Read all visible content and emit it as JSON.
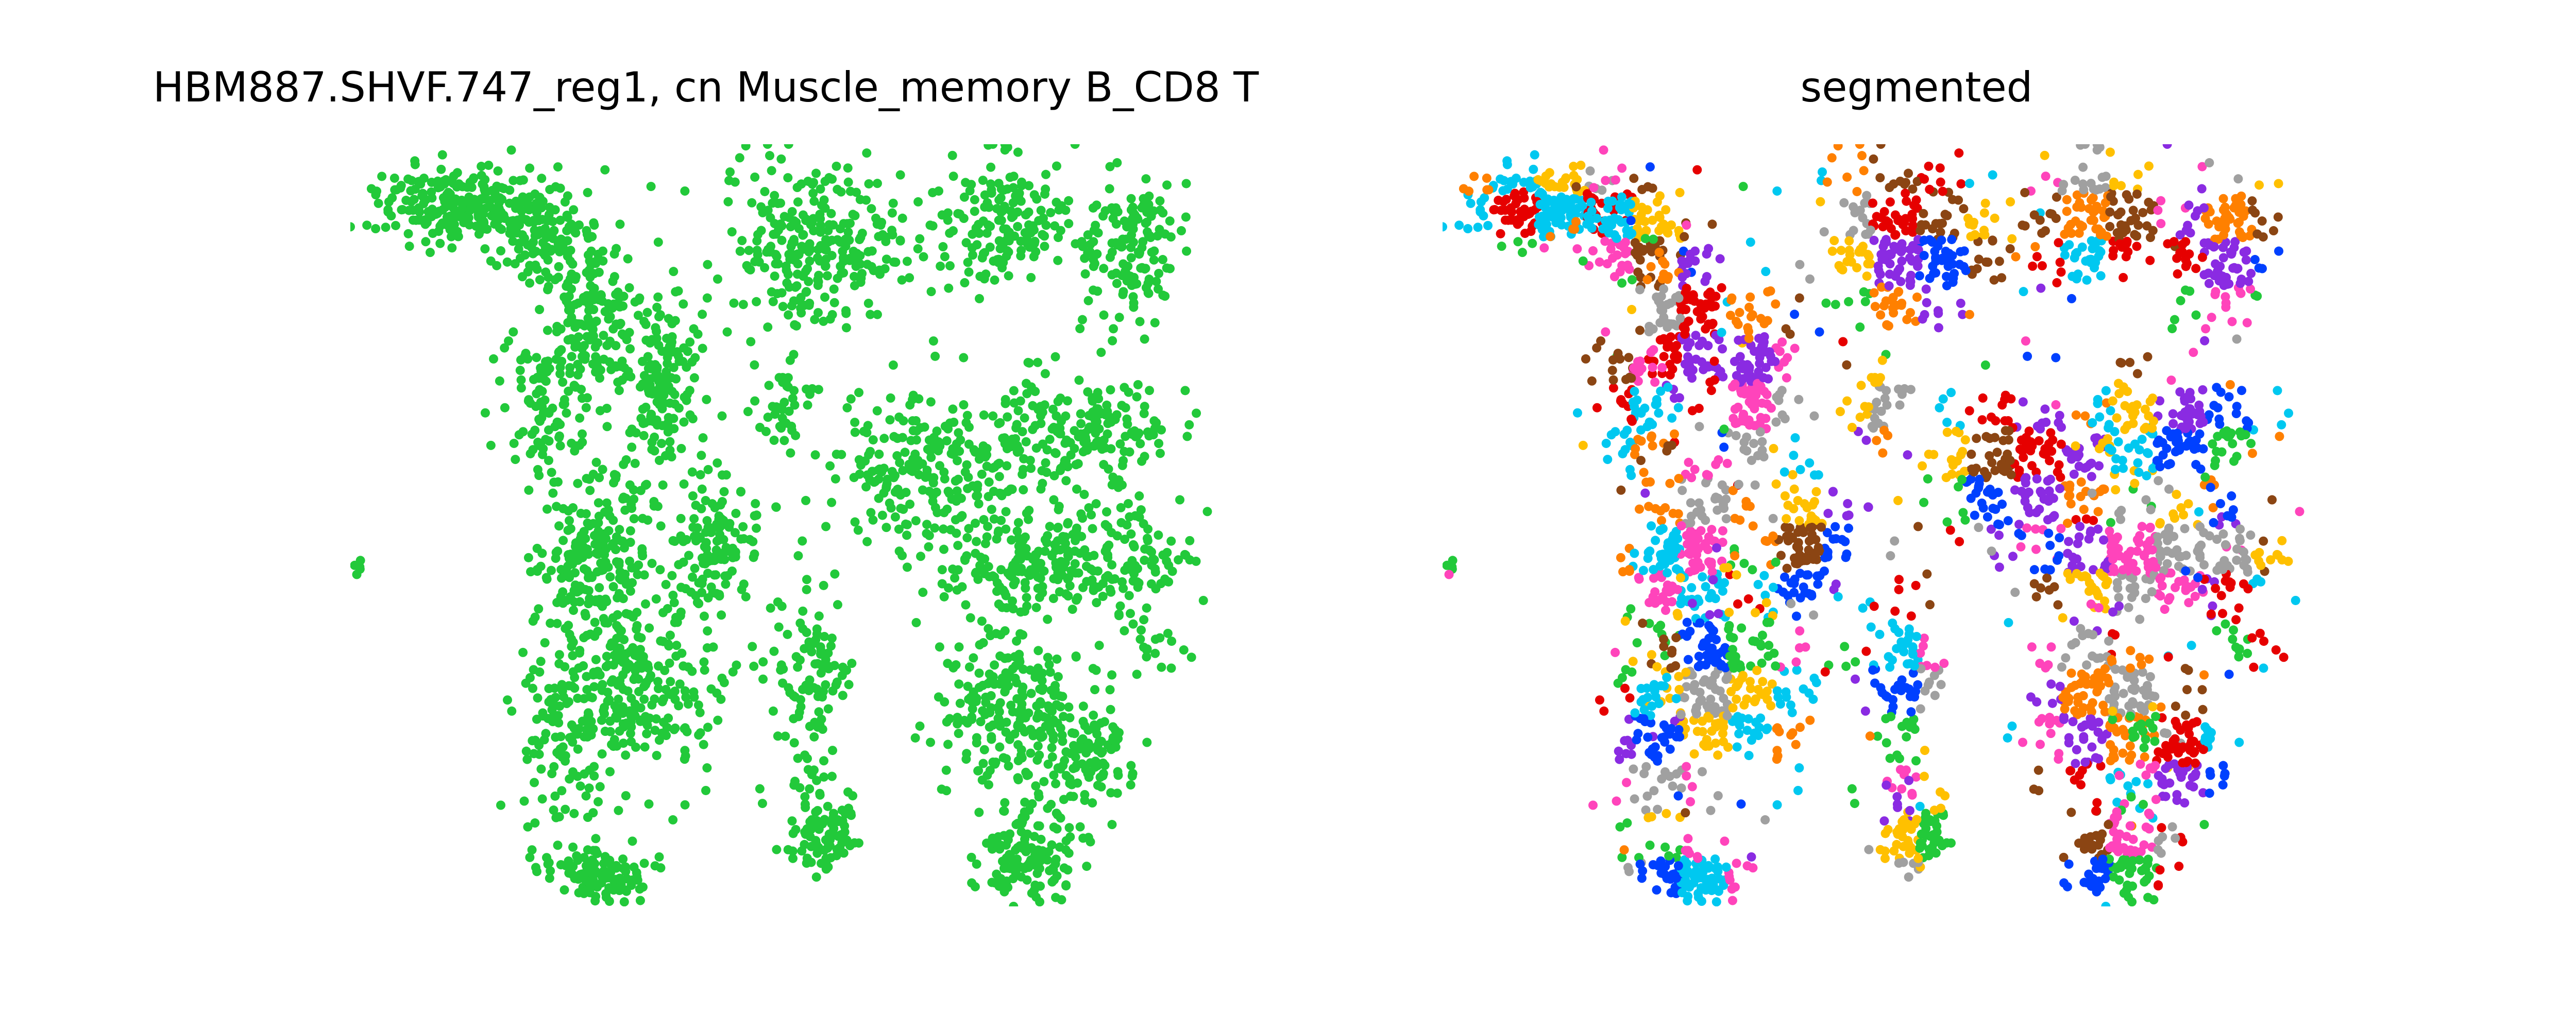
{
  "figure": {
    "panels": [
      {
        "title": "HBM887.SHVF.747_reg1, cn Muscle_memory B_CD8 T"
      },
      {
        "title": "segmented"
      }
    ]
  },
  "chart_data": [
    {
      "type": "scatter",
      "title": "HBM887.SHVF.747_reg1, cn Muscle_memory B_CD8 T",
      "xlabel": "",
      "ylabel": "",
      "axes_visible": false,
      "grid": false,
      "legend": "none",
      "xlim": [
        0,
        100
      ],
      "ylim": [
        0,
        88
      ],
      "point_color": "#22c93a",
      "description_of_points": "dense point cloud of cells in a single neighborhood color",
      "regions": [
        {
          "cx": 12,
          "cy": 7,
          "rx": 8,
          "ry": 4,
          "n": 220
        },
        {
          "cx": 22,
          "cy": 10,
          "rx": 6,
          "ry": 5,
          "n": 140
        },
        {
          "cx": 28,
          "cy": 20,
          "rx": 5,
          "ry": 8,
          "n": 160
        },
        {
          "cx": 36,
          "cy": 27,
          "rx": 4,
          "ry": 10,
          "n": 150
        },
        {
          "cx": 22,
          "cy": 30,
          "rx": 4,
          "ry": 8,
          "n": 90
        },
        {
          "cx": 28,
          "cy": 47,
          "rx": 6,
          "ry": 10,
          "n": 220
        },
        {
          "cx": 42,
          "cy": 46,
          "rx": 5,
          "ry": 7,
          "n": 130
        },
        {
          "cx": 33,
          "cy": 62,
          "rx": 9,
          "ry": 10,
          "n": 260
        },
        {
          "cx": 24,
          "cy": 70,
          "rx": 4,
          "ry": 9,
          "n": 90
        },
        {
          "cx": 28,
          "cy": 84,
          "rx": 5,
          "ry": 3,
          "n": 110
        },
        {
          "cx": 53,
          "cy": 63,
          "rx": 4,
          "ry": 13,
          "n": 110
        },
        {
          "cx": 55,
          "cy": 80,
          "rx": 4,
          "ry": 5,
          "n": 80
        },
        {
          "cx": 54,
          "cy": 12,
          "rx": 10,
          "ry": 9,
          "n": 280
        },
        {
          "cx": 50,
          "cy": 30,
          "rx": 3,
          "ry": 5,
          "n": 40
        },
        {
          "cx": 75,
          "cy": 9,
          "rx": 7,
          "ry": 7,
          "n": 160
        },
        {
          "cx": 90,
          "cy": 12,
          "rx": 5,
          "ry": 8,
          "n": 140
        },
        {
          "cx": 67,
          "cy": 38,
          "rx": 11,
          "ry": 8,
          "n": 240
        },
        {
          "cx": 85,
          "cy": 33,
          "rx": 9,
          "ry": 6,
          "n": 180
        },
        {
          "cx": 80,
          "cy": 48,
          "rx": 12,
          "ry": 6,
          "n": 220
        },
        {
          "cx": 92,
          "cy": 50,
          "rx": 4,
          "ry": 8,
          "n": 80
        },
        {
          "cx": 76,
          "cy": 65,
          "rx": 8,
          "ry": 9,
          "n": 220
        },
        {
          "cx": 85,
          "cy": 70,
          "rx": 5,
          "ry": 7,
          "n": 120
        },
        {
          "cx": 78,
          "cy": 82,
          "rx": 5,
          "ry": 5,
          "n": 130
        },
        {
          "cx": 1,
          "cy": 48,
          "rx": 0.5,
          "ry": 1.5,
          "n": 5
        }
      ]
    },
    {
      "type": "scatter",
      "title": "segmented",
      "xlabel": "",
      "ylabel": "",
      "axes_visible": false,
      "grid": false,
      "legend": "none",
      "xlim": [
        0,
        100
      ],
      "ylim": [
        0,
        88
      ],
      "palette": [
        "#ff8000",
        "#8a2be2",
        "#0040ff",
        "#00c8f0",
        "#e60000",
        "#8b4513",
        "#ffc000",
        "#22c93a",
        "#ff44bb",
        "#a0a0a0"
      ],
      "description_of_points": "same cell positions colored by segment id, forming many small clustered patches"
    }
  ]
}
